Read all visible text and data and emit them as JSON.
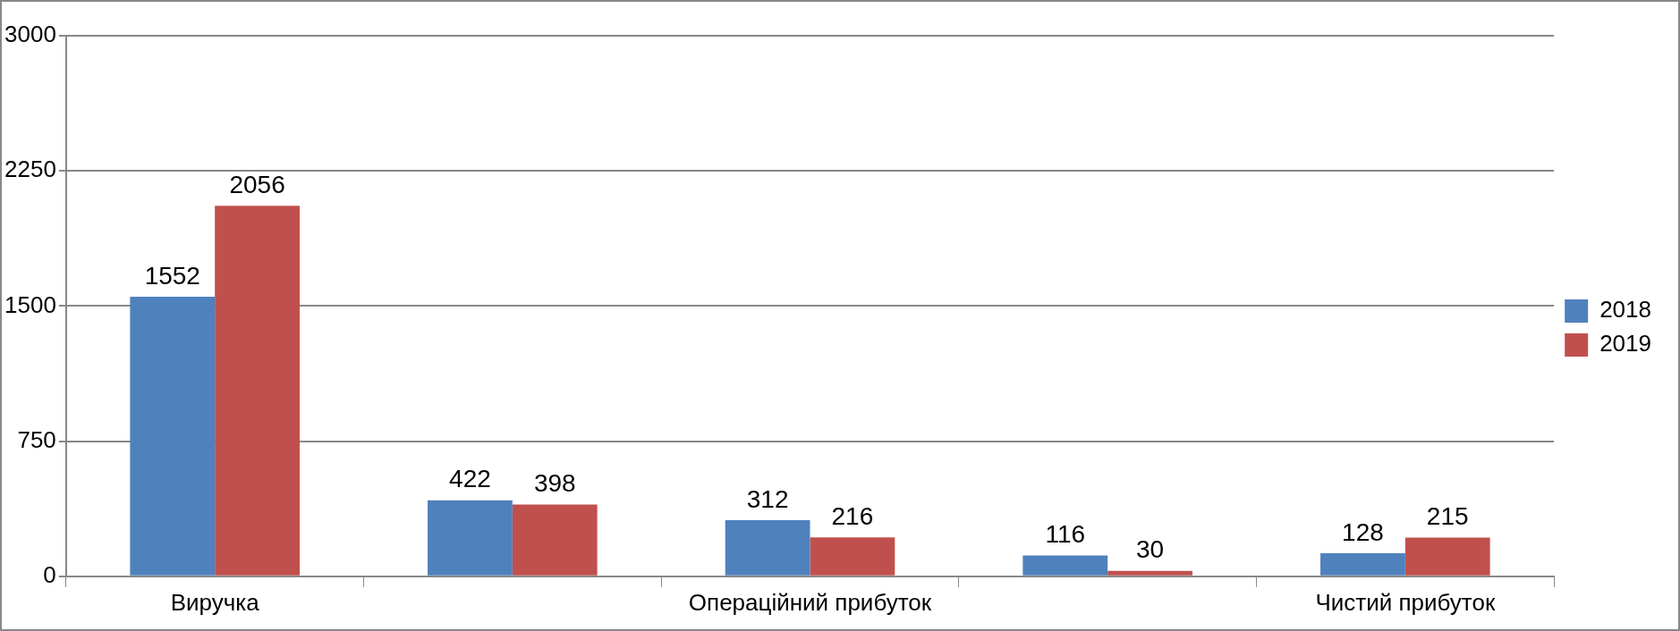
{
  "chart_data": {
    "type": "bar",
    "categories": [
      "Виручка",
      null,
      "Операційний прибуток",
      null,
      "Чистий прибуток"
    ],
    "series": [
      {
        "name": "2018",
        "color": "#4f81bd",
        "values": [
          1552,
          422,
          312,
          116,
          128
        ]
      },
      {
        "name": "2019",
        "color": "#c0504d",
        "values": [
          2056,
          398,
          216,
          30,
          215
        ]
      }
    ],
    "ylim": [
      0,
      3000
    ],
    "yticks": [
      0,
      750,
      1500,
      2250,
      3000
    ],
    "grid": "y",
    "legend": "right",
    "data_labels": true
  }
}
